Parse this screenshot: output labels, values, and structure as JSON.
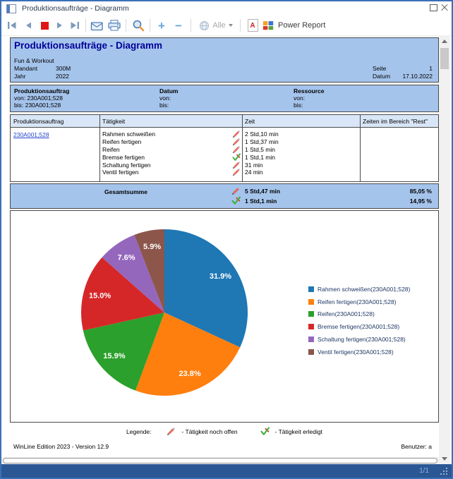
{
  "window": {
    "title": "Produktionsaufträge - Diagramm"
  },
  "toolbar": {
    "alle_label": "Alle",
    "power_report_label": "Power Report",
    "zoom_in_glyph": "+",
    "zoom_out_glyph": "−"
  },
  "report": {
    "title": "Produktionsaufträge - Diagramm",
    "company": "Fun & Workout",
    "mandant_label": "Mandant",
    "mandant_value": "300M",
    "jahr_label": "Jahr",
    "jahr_value": "2022",
    "seite_label": "Seite",
    "seite_value": "1",
    "datum_label": "Datum",
    "datum_value": "17.10.2022",
    "filters": [
      {
        "title": "Produktionsauftrag",
        "von": "von: 230A001;528",
        "bis": "bis: 230A001;528"
      },
      {
        "title": "Datum",
        "von": "von:",
        "bis": "bis:"
      },
      {
        "title": "Ressource",
        "von": "von:",
        "bis": "bis:"
      }
    ],
    "table": {
      "headers": [
        "Produktionsauftrag",
        "Tätigkeit",
        "Zeit",
        "Zeiten im Bereich \"Rest\""
      ],
      "order_link": "230A001;528",
      "rows": [
        {
          "activity": "Rahmen schweißen",
          "status": "open",
          "time": "2 Std,10 min"
        },
        {
          "activity": "Reifen fertigen",
          "status": "open",
          "time": "1 Std,37 min"
        },
        {
          "activity": "Reifen",
          "status": "open",
          "time": "1 Std,5 min"
        },
        {
          "activity": "Bremse fertigen",
          "status": "done",
          "time": "1 Std,1 min"
        },
        {
          "activity": "Schaltung fertigen",
          "status": "open",
          "time": "31 min"
        },
        {
          "activity": "Ventil fertigen",
          "status": "open",
          "time": "24 min"
        }
      ],
      "total": {
        "label": "Gesamtsumme",
        "open_time": "5 Std,47 min",
        "done_time": "1 Std,1 min",
        "open_pct": "85,05 %",
        "done_pct": "14,95 %"
      }
    },
    "legend_note": {
      "label": "Legende:",
      "open_text": "- Tätigkeit noch offen",
      "done_text": "- Tätigkeit erledigt"
    },
    "footer": {
      "left": "WinLine Edition 2023 - Version 12.9",
      "right": "Benutzer: a"
    }
  },
  "chart_data": {
    "type": "pie",
    "title": "",
    "values": [
      31.9,
      23.8,
      15.9,
      15.0,
      7.6,
      5.9
    ],
    "labels": [
      "31.9%",
      "23.8%",
      "15.9%",
      "15.0%",
      "7.6%",
      "5.9%"
    ],
    "legend": [
      "Rahmen schweißen(230A001;528)",
      "Reifen fertigen(230A001;528)",
      "Reifen(230A001;528)",
      "Bremse fertigen(230A001;528)",
      "Schaltung fertigen(230A001;528)",
      "Ventil fertigen(230A001;528)"
    ],
    "colors": [
      "#1f77b4",
      "#ff7f0e",
      "#2ca02c",
      "#d62728",
      "#9467bd",
      "#8c564b"
    ],
    "start_angle": "top",
    "direction": "clockwise",
    "label_distance": 0.8,
    "legend_position": "right"
  },
  "statusbar": {
    "page_indicator": "1/1"
  }
}
